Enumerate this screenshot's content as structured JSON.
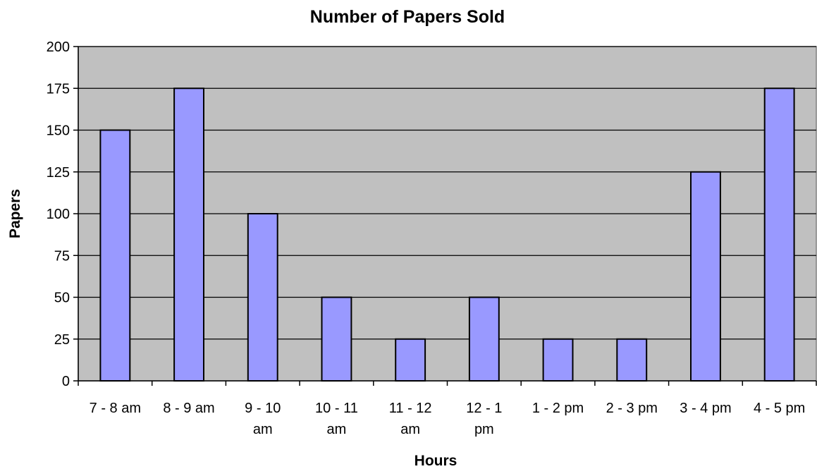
{
  "chart_data": {
    "type": "bar",
    "title": "Number of Papers Sold",
    "xlabel": "Hours",
    "ylabel": "Papers",
    "categories": [
      [
        "7 - 8 am"
      ],
      [
        "8 - 9 am"
      ],
      [
        "9 - 10",
        "am"
      ],
      [
        "10 - 11",
        "am"
      ],
      [
        "11 - 12",
        "am"
      ],
      [
        "12 - 1",
        "pm"
      ],
      [
        "1 - 2 pm"
      ],
      [
        "2 - 3 pm"
      ],
      [
        "3 - 4 pm"
      ],
      [
        "4 - 5 pm"
      ]
    ],
    "values": [
      150,
      175,
      100,
      50,
      25,
      50,
      25,
      25,
      125,
      175
    ],
    "ylim": [
      0,
      200
    ],
    "yticks": [
      "0",
      "25",
      "50",
      "75",
      "100",
      "125",
      "150",
      "175",
      "200"
    ],
    "grid": true,
    "legend": "none",
    "colors": {
      "plot_background": "#c0c0c0",
      "bar_fill": "#9999ff",
      "bar_stroke": "#000000",
      "gridline": "#000000"
    }
  }
}
